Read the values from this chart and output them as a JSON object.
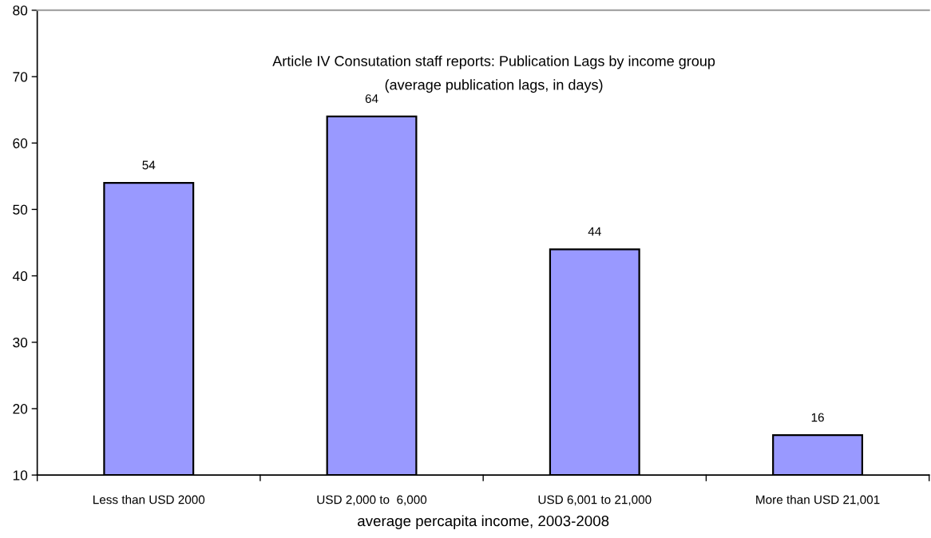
{
  "chart_data": {
    "type": "bar",
    "title": "Article IV Consutation staff reports: Publication Lags by income group",
    "subtitle": "(average publication lags, in days)",
    "xlabel": "average percapita income, 2003-2008",
    "categories": [
      "Less than USD 2000",
      "USD 2,000 to  6,000",
      "USD 6,001 to 21,000",
      "More than USD 21,001"
    ],
    "values": [
      54,
      64,
      44,
      16
    ],
    "color": "#9999ff",
    "ylim": [
      10,
      80
    ],
    "yticks": [
      10,
      20,
      30,
      40,
      50,
      60,
      70,
      80
    ],
    "data_labels": true,
    "grid": false,
    "legend": false
  }
}
